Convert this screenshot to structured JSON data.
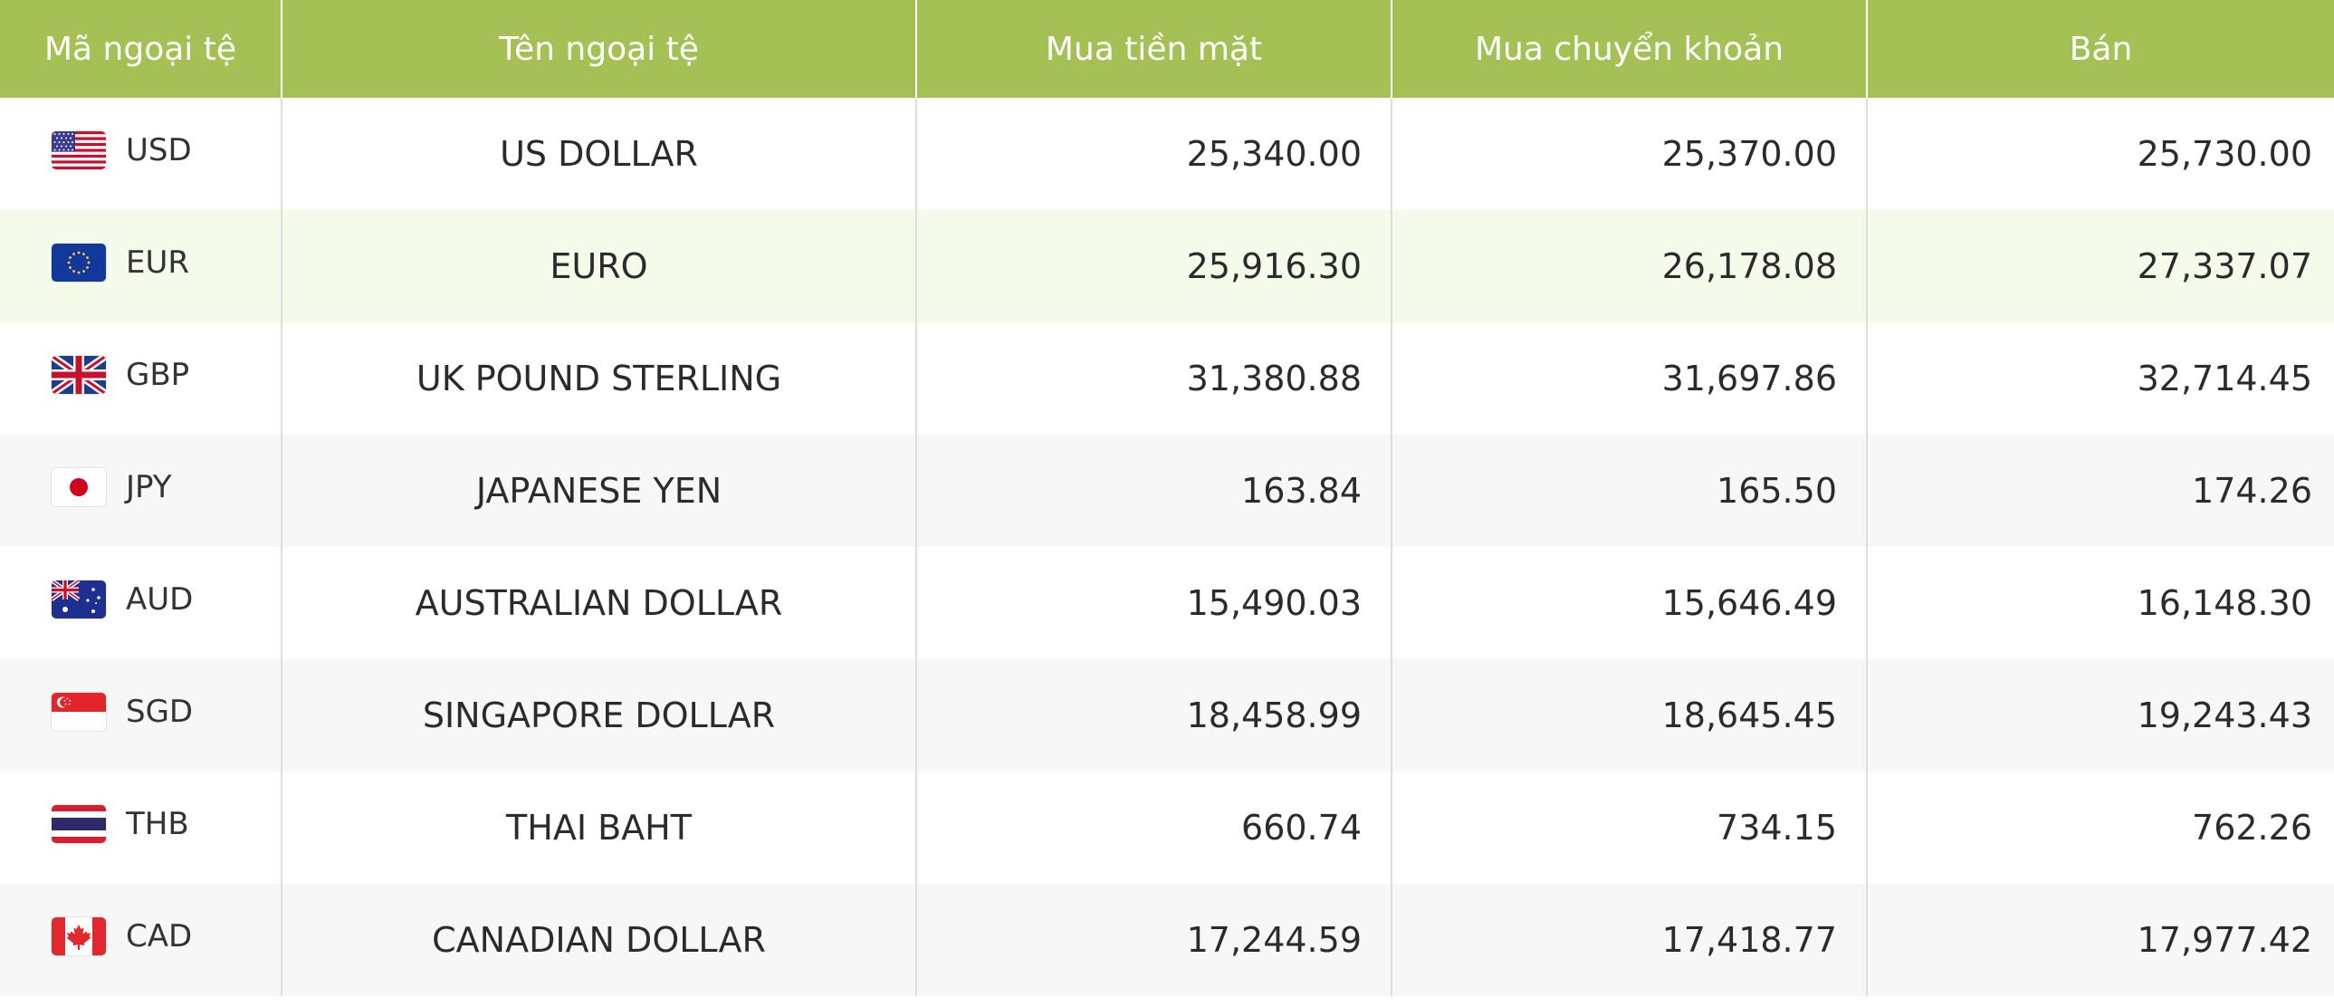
{
  "table": {
    "headers": {
      "code": "Mã ngoại tệ",
      "name": "Tên ngoại tệ",
      "cash_buy": "Mua tiền mặt",
      "transfer_buy": "Mua chuyển khoản",
      "sell": "Bán"
    },
    "colors": {
      "header_bg": "#a5c155",
      "highlight_row_bg": "#f5fbea",
      "alt_row_bg": "#f7f7f7"
    },
    "rows": [
      {
        "flag": "us-flag-icon",
        "code": "USD",
        "name": "US DOLLAR",
        "cash_buy": "25,340.00",
        "transfer_buy": "25,370.00",
        "sell": "25,730.00"
      },
      {
        "flag": "eu-flag-icon",
        "code": "EUR",
        "name": "EURO",
        "cash_buy": "25,916.30",
        "transfer_buy": "26,178.08",
        "sell": "27,337.07"
      },
      {
        "flag": "uk-flag-icon",
        "code": "GBP",
        "name": "UK POUND STERLING",
        "cash_buy": "31,380.88",
        "transfer_buy": "31,697.86",
        "sell": "32,714.45"
      },
      {
        "flag": "japan-flag-icon",
        "code": "JPY",
        "name": "JAPANESE YEN",
        "cash_buy": "163.84",
        "transfer_buy": "165.50",
        "sell": "174.26"
      },
      {
        "flag": "australia-flag-icon",
        "code": "AUD",
        "name": "AUSTRALIAN DOLLAR",
        "cash_buy": "15,490.03",
        "transfer_buy": "15,646.49",
        "sell": "16,148.30"
      },
      {
        "flag": "singapore-flag-icon",
        "code": "SGD",
        "name": "SINGAPORE DOLLAR",
        "cash_buy": "18,458.99",
        "transfer_buy": "18,645.45",
        "sell": "19,243.43"
      },
      {
        "flag": "thailand-flag-icon",
        "code": "THB",
        "name": "THAI BAHT",
        "cash_buy": "660.74",
        "transfer_buy": "734.15",
        "sell": "762.26"
      },
      {
        "flag": "canada-flag-icon",
        "code": "CAD",
        "name": "CANADIAN DOLLAR",
        "cash_buy": "17,244.59",
        "transfer_buy": "17,418.77",
        "sell": "17,977.42"
      }
    ]
  }
}
